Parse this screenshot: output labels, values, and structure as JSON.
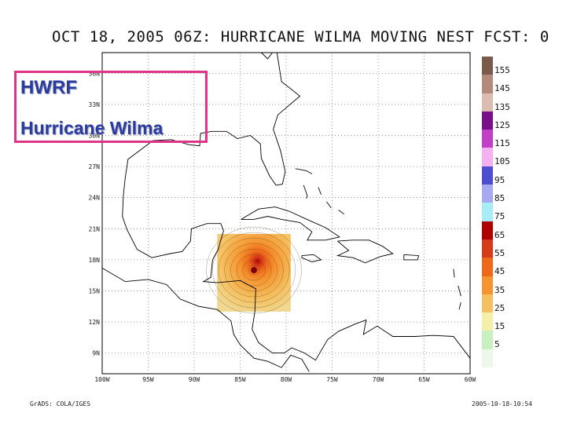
{
  "title": "OCT 18, 2005 06Z: HURRICANE WILMA MOVING NEST FCST: 0",
  "overlay": {
    "line1": "HWRF",
    "line2": "Hurricane Wilma"
  },
  "map": {
    "latitude_labels": [
      "36N",
      "33N",
      "30N",
      "27N",
      "24N",
      "21N",
      "18N",
      "15N",
      "12N",
      "9N"
    ],
    "longitude_labels": [
      "100W",
      "95W",
      "90W",
      "85W",
      "80W",
      "75W",
      "70W",
      "65W",
      "60W"
    ],
    "lon_range": [
      -100,
      -60
    ],
    "lat_range": [
      7,
      38
    ],
    "grid": "dotted",
    "storm_center": {
      "lon": -83.5,
      "lat": 17.0
    },
    "nest_domain": {
      "lon": [
        -87.5,
        -79.5
      ],
      "lat": [
        13.0,
        20.5
      ]
    }
  },
  "colorbar": {
    "levels": [
      {
        "label": "155",
        "color": "#7a5a4a"
      },
      {
        "label": "145",
        "color": "#b48a7a"
      },
      {
        "label": "135",
        "color": "#dcbcb0"
      },
      {
        "label": "125",
        "color": "#7a0f8a"
      },
      {
        "label": "115",
        "color": "#c43fc8"
      },
      {
        "label": "105",
        "color": "#f5b0f2"
      },
      {
        "label": "95",
        "color": "#4e4ed2"
      },
      {
        "label": "85",
        "color": "#a8a8f0"
      },
      {
        "label": "75",
        "color": "#a8ecf5"
      },
      {
        "label": "65",
        "color": "#b00000"
      },
      {
        "label": "55",
        "color": "#d63a1a"
      },
      {
        "label": "45",
        "color": "#ee6a1a"
      },
      {
        "label": "35",
        "color": "#f59430"
      },
      {
        "label": "25",
        "color": "#f5c060"
      },
      {
        "label": "15",
        "color": "#f5f0a8"
      },
      {
        "label": "5",
        "color": "#c8f0c0"
      },
      {
        "label": "",
        "color": "#eef8ea"
      }
    ]
  },
  "footer": {
    "left": "GrADS: COLA/IGES",
    "right": "2005-10-18-10:54"
  }
}
